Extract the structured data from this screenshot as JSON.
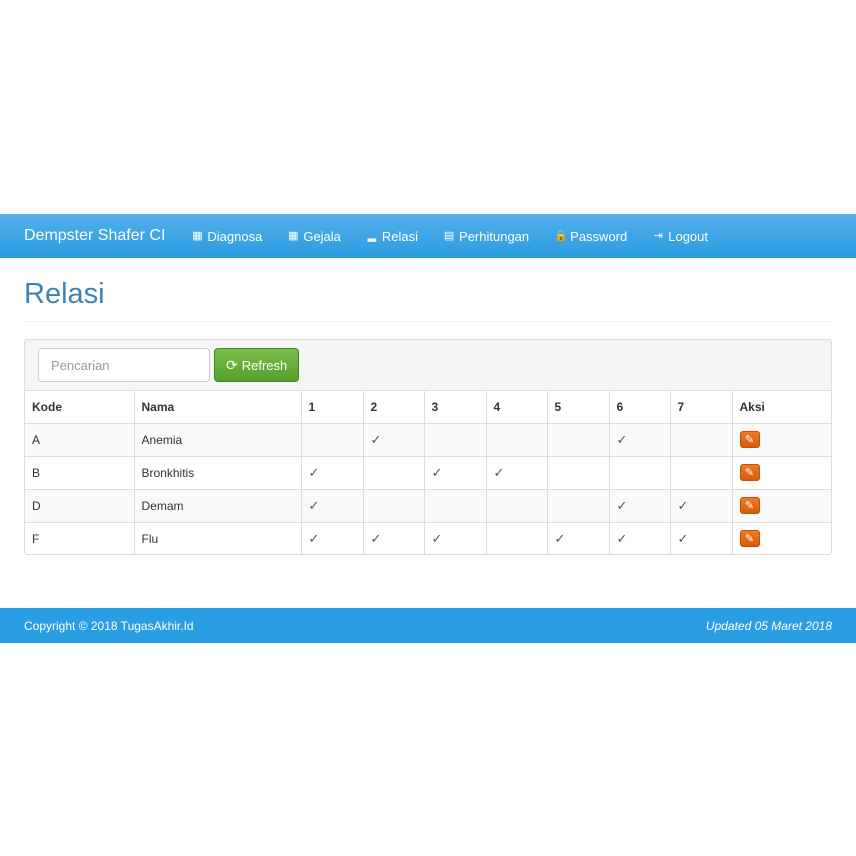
{
  "navbar": {
    "brand": "Dempster Shafer CI",
    "items": [
      {
        "label": "Diagnosa",
        "icon": "th-large-icon",
        "glyph": "▦"
      },
      {
        "label": "Gejala",
        "icon": "th-icon",
        "glyph": "▦"
      },
      {
        "label": "Relasi",
        "icon": "signal-icon",
        "glyph": "▂"
      },
      {
        "label": "Perhitungan",
        "icon": "calendar-icon",
        "glyph": "▤"
      },
      {
        "label": "Password",
        "icon": "lock-icon",
        "glyph": "🔒"
      },
      {
        "label": "Logout",
        "icon": "logout-icon",
        "glyph": "⇥"
      }
    ]
  },
  "page": {
    "title": "Relasi"
  },
  "toolbar": {
    "search_placeholder": "Pencarian",
    "refresh_label": "Refresh"
  },
  "table": {
    "headers": [
      "Kode",
      "Nama",
      "1",
      "2",
      "3",
      "4",
      "5",
      "6",
      "7",
      "Aksi"
    ],
    "rows": [
      {
        "kode": "A",
        "nama": "Anemia",
        "marks": [
          "",
          "✓",
          "",
          "",
          "",
          "✓",
          ""
        ]
      },
      {
        "kode": "B",
        "nama": "Bronkhitis",
        "marks": [
          "✓",
          "",
          "✓",
          "✓",
          "",
          "",
          ""
        ]
      },
      {
        "kode": "D",
        "nama": "Demam",
        "marks": [
          "✓",
          "",
          "",
          "",
          "",
          "✓",
          "✓"
        ]
      },
      {
        "kode": "F",
        "nama": "Flu",
        "marks": [
          "✓",
          "✓",
          "✓",
          "",
          "✓",
          "✓",
          "✓"
        ]
      }
    ]
  },
  "footer": {
    "copyright": "Copyright © 2018 TugasAkhir.Id",
    "updated": "Updated 05 Maret 2018"
  },
  "colors": {
    "navbar": "#2a9be0",
    "title": "#3b83b8",
    "refresh": "#56a02c",
    "edit": "#e0640f"
  }
}
